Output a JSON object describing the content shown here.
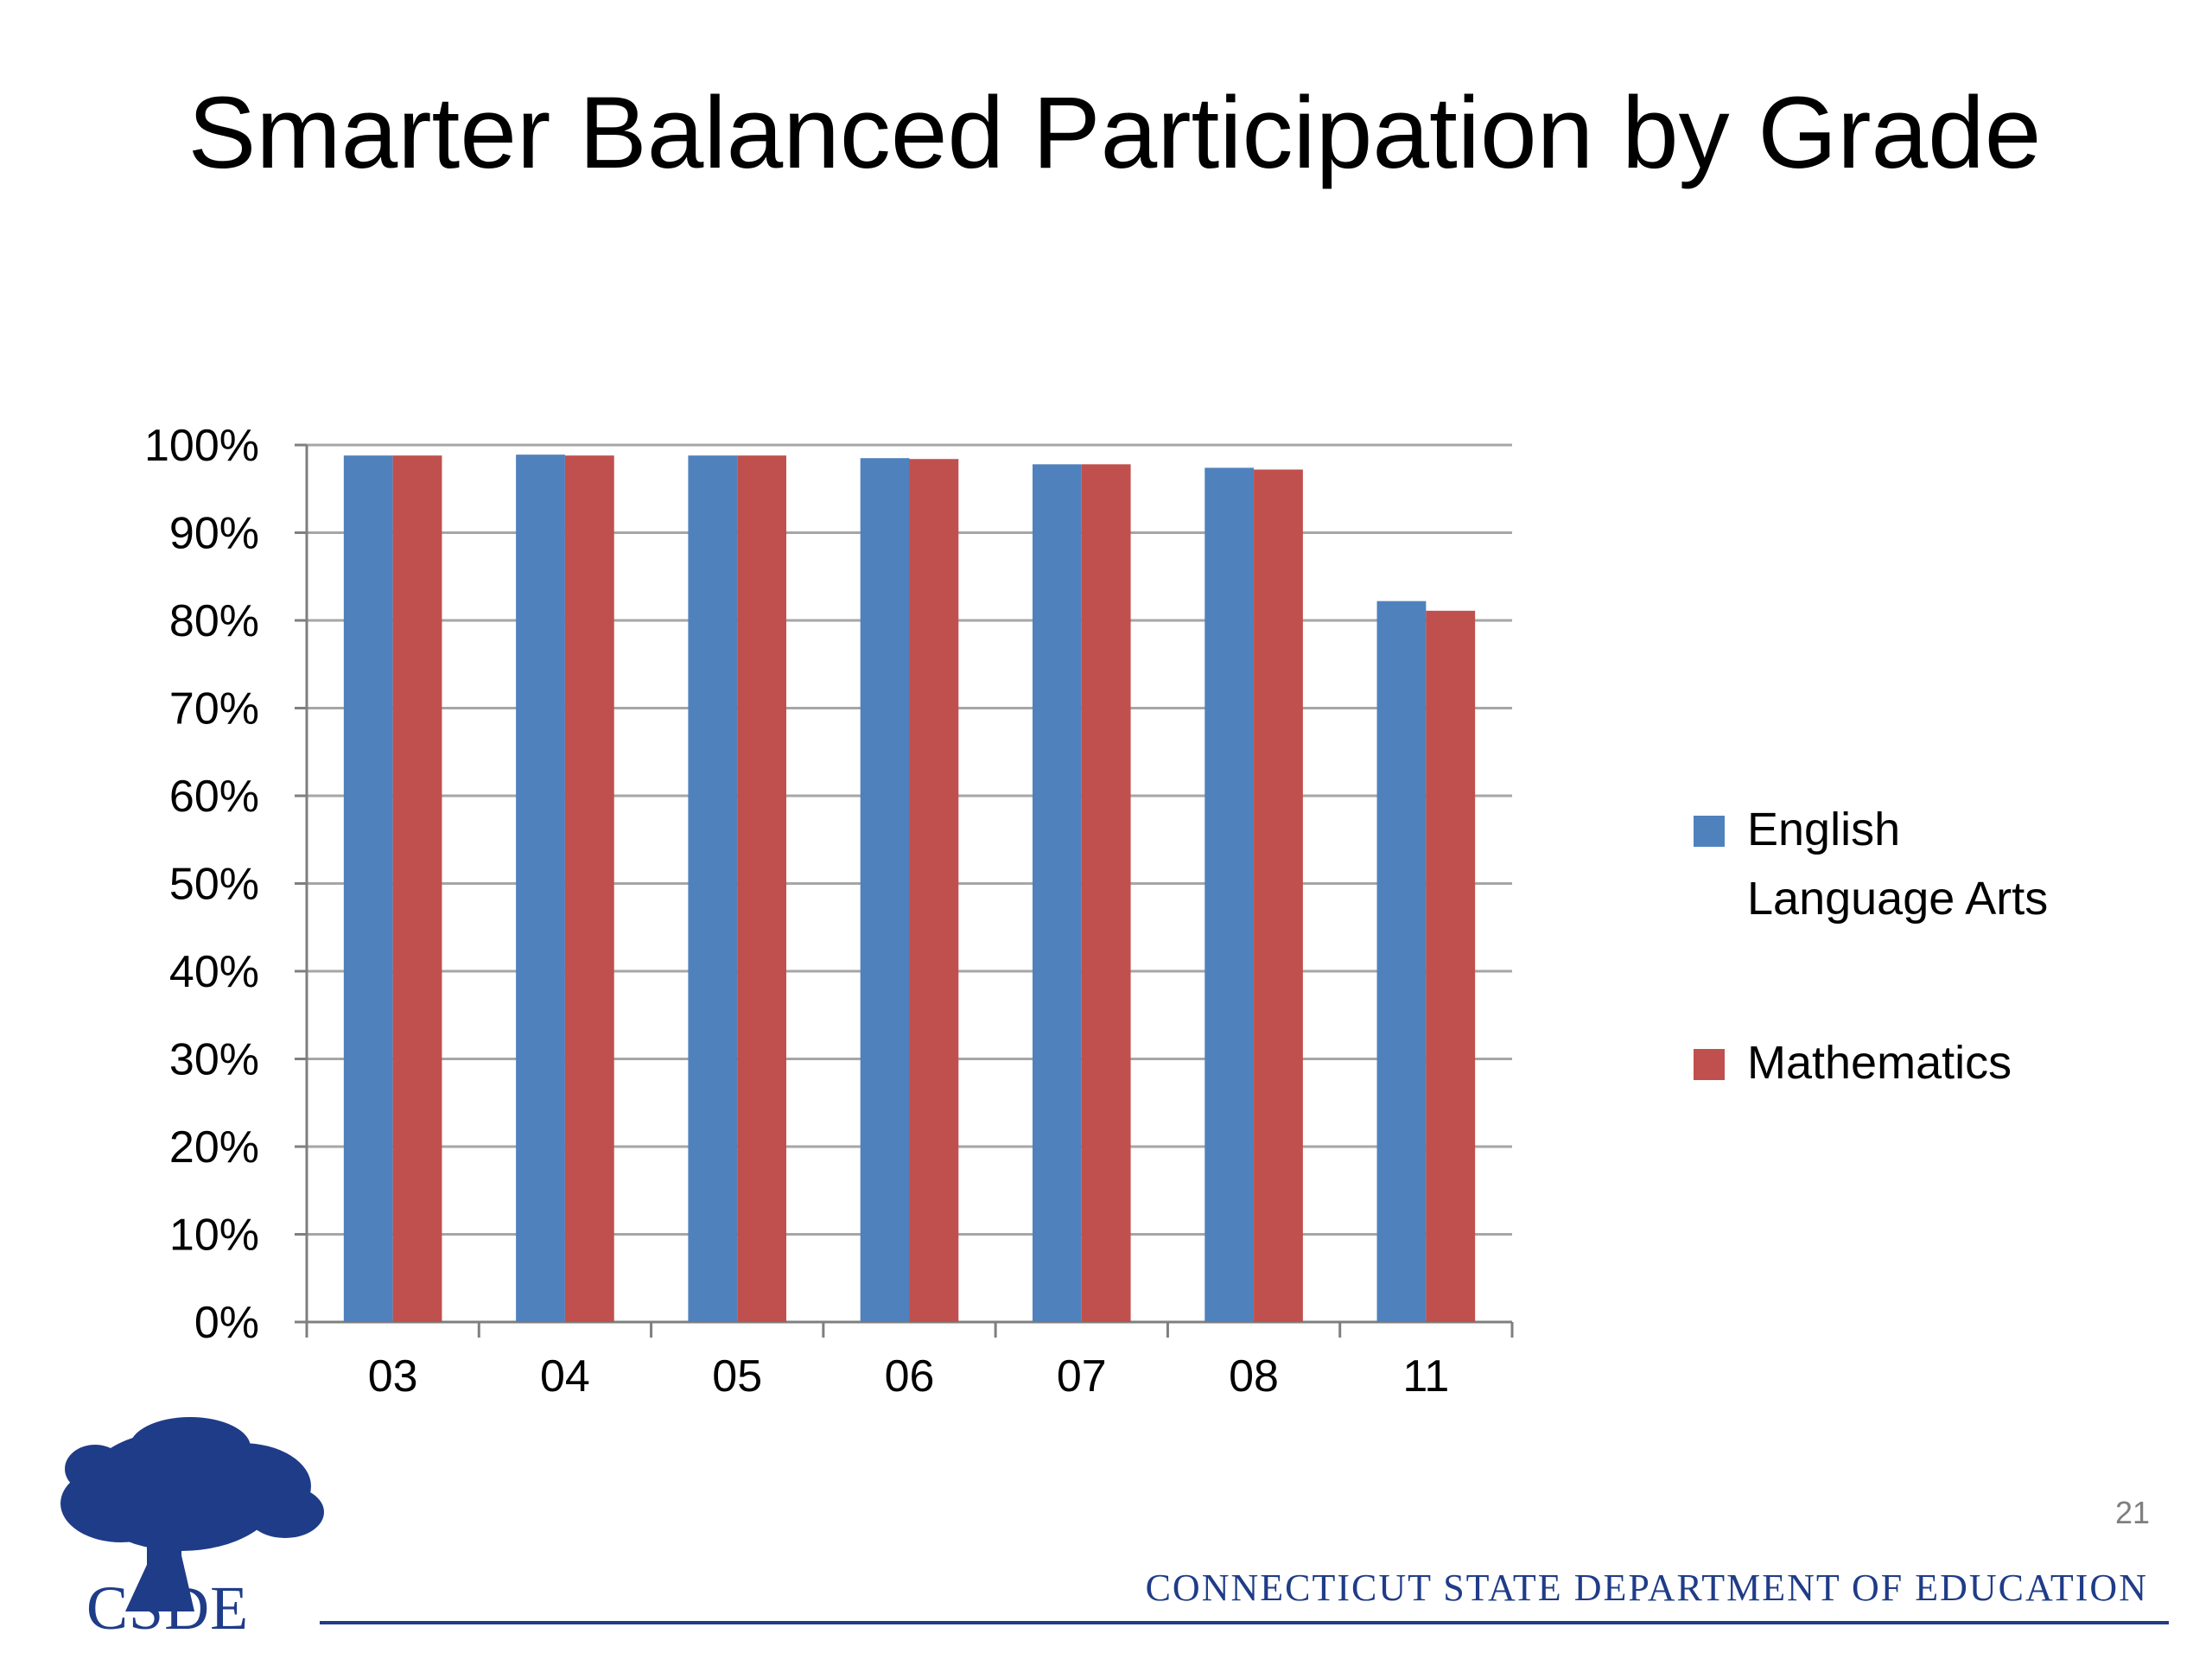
{
  "slide": {
    "title": "Smarter Balanced Participation by Grade",
    "page_number": "21",
    "footer": "CONNECTICUT STATE DEPARTMENT OF EDUCATION",
    "logo_text": "CSDE"
  },
  "colors": {
    "ela": "#4f81bd",
    "math": "#c0504d",
    "grid": "#a6a6a6",
    "brand": "#1f3c88"
  },
  "chart_data": {
    "type": "bar",
    "categories": [
      "03",
      "04",
      "05",
      "06",
      "07",
      "08",
      "11"
    ],
    "series": [
      {
        "name": "English Language Arts",
        "values": [
          98.8,
          98.9,
          98.8,
          98.5,
          97.8,
          97.4,
          82.2
        ]
      },
      {
        "name": "Mathematics",
        "values": [
          98.8,
          98.8,
          98.8,
          98.4,
          97.8,
          97.2,
          81.1
        ]
      }
    ],
    "ylim": [
      0,
      100
    ],
    "yticks": [
      "0%",
      "10%",
      "20%",
      "30%",
      "40%",
      "50%",
      "60%",
      "70%",
      "80%",
      "90%",
      "100%"
    ],
    "grid": true,
    "legend": "right"
  }
}
